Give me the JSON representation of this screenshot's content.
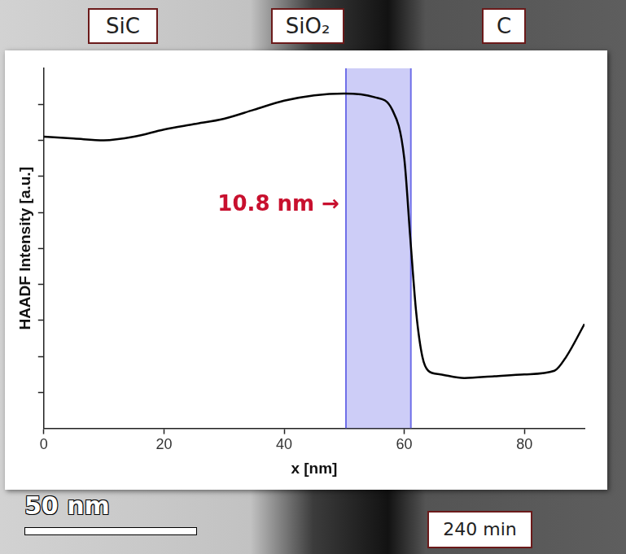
{
  "chart_data": {
    "type": "line",
    "x": [
      0,
      5,
      10,
      15,
      20,
      25,
      30,
      35,
      40,
      45,
      50,
      55,
      58,
      60,
      61,
      62,
      63,
      64,
      66,
      70,
      75,
      80,
      85,
      87,
      90
    ],
    "values": [
      0.81,
      0.805,
      0.8,
      0.81,
      0.83,
      0.845,
      0.86,
      0.885,
      0.91,
      0.925,
      0.93,
      0.92,
      0.885,
      0.75,
      0.53,
      0.32,
      0.2,
      0.16,
      0.15,
      0.14,
      0.145,
      0.15,
      0.16,
      0.2,
      0.29
    ],
    "color": "#000000",
    "xlim": [
      0,
      90
    ],
    "xticks": [
      0,
      20,
      40,
      60,
      80
    ],
    "ylim": [
      0,
      1
    ],
    "yticks": [
      0.1,
      0.2,
      0.3,
      0.4,
      0.5,
      0.6,
      0.7,
      0.8,
      0.9
    ],
    "x_label": "x [nm]",
    "y_label": "HAADF Intensity [a.u.]",
    "tick_labels": "x",
    "grid": false,
    "highlight": {
      "x": [
        50.3,
        61.1
      ],
      "color": "#6f6fe8"
    },
    "annotations": [
      {
        "text": "10.8 nm →",
        "color": "#c8102e"
      }
    ]
  },
  "image": {
    "labels": [
      "SiC",
      "SiO₂",
      "C"
    ],
    "scale_bar": "50 nm",
    "time": "240 min"
  }
}
